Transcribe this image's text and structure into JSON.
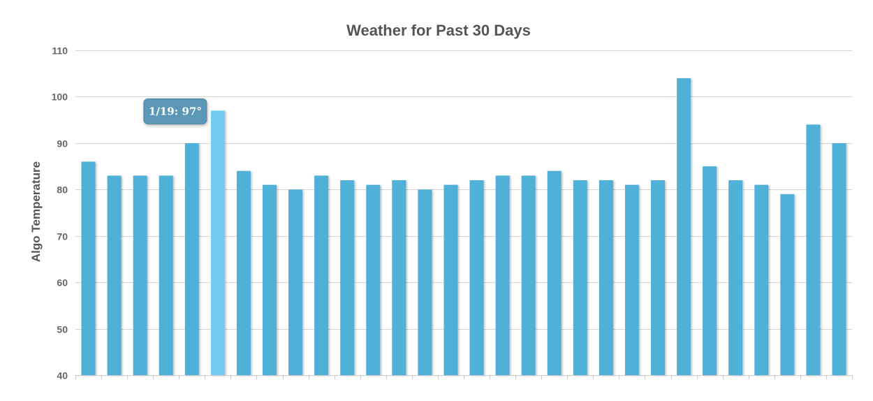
{
  "chart_data": {
    "type": "bar",
    "title": "Weather for Past 30 Days",
    "xlabel": "",
    "ylabel": "Algo Temperature",
    "ylim": [
      40,
      110
    ],
    "yticks": [
      40,
      50,
      60,
      70,
      80,
      90,
      100,
      110
    ],
    "grid": true,
    "values": [
      86,
      83,
      83,
      83,
      90,
      97,
      84,
      81,
      80,
      83,
      82,
      81,
      82,
      80,
      81,
      82,
      83,
      83,
      84,
      82,
      82,
      81,
      82,
      104,
      85,
      82,
      81,
      79,
      94,
      90
    ],
    "highlight_index": 5,
    "tooltip": "1/19: 97°",
    "colors": {
      "bar": "#4fb0d8",
      "bar_highlight": "#72ccf2",
      "tooltip_bg": "#5b98b5"
    }
  }
}
